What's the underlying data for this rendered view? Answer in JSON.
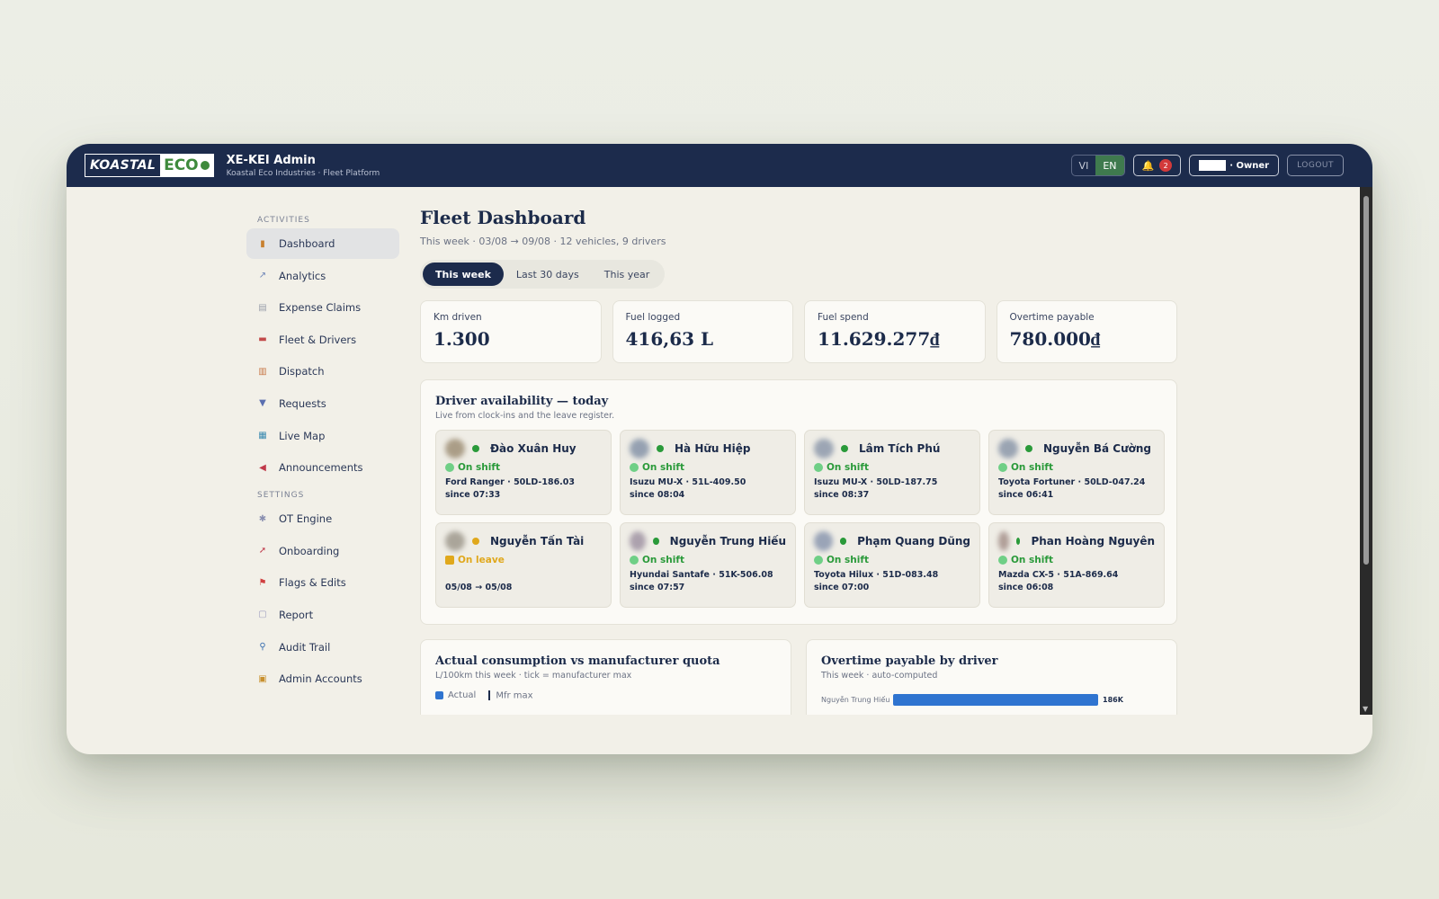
{
  "app": {
    "logo_left": "KOASTAL",
    "logo_right": "ECO",
    "title": "XE-KEI Admin",
    "subtitle": "Koastal Eco Industries · Fleet Platform"
  },
  "topbar": {
    "lang_vi": "VI",
    "lang_en": "EN",
    "notifications_count": "2",
    "user_role": "· Owner",
    "logout_label": "LOGOUT"
  },
  "sidebar": {
    "activities_head": "ACTIVITIES",
    "settings_head": "SETTINGS",
    "activities": [
      {
        "label": "Dashboard",
        "icon": "bar-chart-icon"
      },
      {
        "label": "Analytics",
        "icon": "line-chart-icon"
      },
      {
        "label": "Expense Claims",
        "icon": "receipt-icon"
      },
      {
        "label": "Fleet & Drivers",
        "icon": "car-icon"
      },
      {
        "label": "Dispatch",
        "icon": "clipboard-icon"
      },
      {
        "label": "Requests",
        "icon": "inbox-icon"
      },
      {
        "label": "Live Map",
        "icon": "map-icon"
      },
      {
        "label": "Announcements",
        "icon": "megaphone-icon"
      }
    ],
    "settings": [
      {
        "label": "OT Engine",
        "icon": "gear-icon"
      },
      {
        "label": "Onboarding",
        "icon": "rocket-icon"
      },
      {
        "label": "Flags & Edits",
        "icon": "flag-icon"
      },
      {
        "label": "Report",
        "icon": "document-icon"
      },
      {
        "label": "Audit Trail",
        "icon": "magnifier-icon"
      },
      {
        "label": "Admin Accounts",
        "icon": "lock-icon"
      }
    ]
  },
  "main": {
    "title": "Fleet Dashboard",
    "subtitle": "This week · 03/08 → 09/08 · 12 vehicles, 9 drivers",
    "tabs": [
      "This week",
      "Last 30 days",
      "This year"
    ],
    "stats": [
      {
        "label": "Km driven",
        "value": "1.300"
      },
      {
        "label": "Fuel logged",
        "value": "416,63 L"
      },
      {
        "label": "Fuel spend",
        "value": "11.629.277₫"
      },
      {
        "label": "Overtime payable",
        "value": "780.000₫"
      }
    ],
    "availability": {
      "title": "Driver availability — today",
      "subtitle": "Live from clock-ins and the leave register.",
      "drivers": [
        {
          "name": "Đào Xuân Huy",
          "status": "On shift",
          "vehicle": "Ford Ranger · 50LD-186.03",
          "since": "since 07:33"
        },
        {
          "name": "Hà Hữu Hiệp",
          "status": "On shift",
          "vehicle": "Isuzu MU-X · 51L-409.50",
          "since": "since 08:04"
        },
        {
          "name": "Lâm Tích Phú",
          "status": "On shift",
          "vehicle": "Isuzu MU-X · 50LD-187.75",
          "since": "since 08:37"
        },
        {
          "name": "Nguyễn Bá Cường",
          "status": "On shift",
          "vehicle": "Toyota Fortuner · 50LD-047.24",
          "since": "since 06:41"
        },
        {
          "name": "Nguyễn Tấn Tài",
          "status": "On leave",
          "vehicle": "",
          "since": "05/08 → 05/08"
        },
        {
          "name": "Nguyễn Trung Hiếu",
          "status": "On shift",
          "vehicle": "Hyundai Santafe · 51K-506.08",
          "since": "since 07:57"
        },
        {
          "name": "Phạm Quang Dũng",
          "status": "On shift",
          "vehicle": "Toyota Hilux · 51D-083.48",
          "since": "since 07:00"
        },
        {
          "name": "Phan Hoàng Nguyên",
          "status": "On shift",
          "vehicle": "Mazda CX-5 · 51A-869.64",
          "since": "since 06:08"
        }
      ]
    },
    "consumption": {
      "title": "Actual consumption vs manufacturer quota",
      "subtitle": "L/100km this week · tick = manufacturer max",
      "legend_actual": "Actual",
      "legend_max": "Mfr max"
    },
    "overtime": {
      "title": "Overtime payable by driver",
      "subtitle": "This week · auto-computed",
      "rows": [
        {
          "name": "Nguyễn Trung Hiếu",
          "value_label": "186K",
          "value": 186
        }
      ]
    }
  },
  "colors": {
    "navy": "#1c2b4c",
    "on_shift": "#2a9a3a",
    "on_leave": "#e0a81c",
    "bar_blue": "#2f74d0"
  }
}
